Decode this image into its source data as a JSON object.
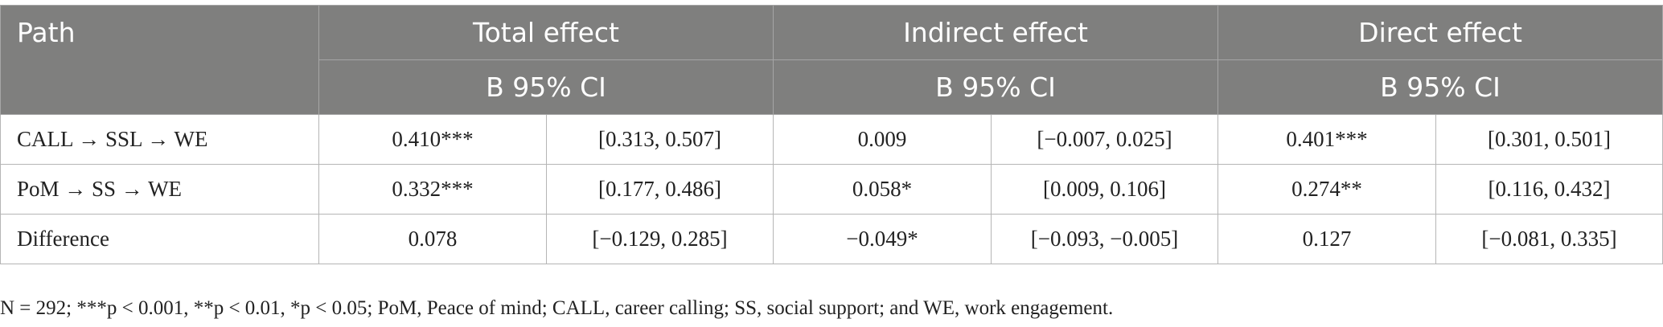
{
  "header": {
    "path": "Path",
    "groups": [
      "Total effect",
      "Indirect effect",
      "Direct effect"
    ],
    "sub": [
      "B 95% CI",
      "B 95% CI",
      "B 95% CI"
    ]
  },
  "table": {
    "rows": [
      [
        "CALL → SSL → WE",
        "0.410***",
        "[0.313, 0.507]",
        "0.009",
        "[−0.007, 0.025]",
        "0.401***",
        "[0.301, 0.501]"
      ],
      [
        "PoM → SS → WE",
        "0.332***",
        "[0.177, 0.486]",
        "0.058*",
        "[0.009, 0.106]",
        "0.274**",
        "[0.116, 0.432]"
      ],
      [
        "Difference",
        "0.078",
        "[−0.129, 0.285]",
        "−0.049*",
        "[−0.093, −0.005]",
        "0.127",
        "[−0.081, 0.335]"
      ]
    ]
  },
  "footnote": "N = 292; ***p < 0.001, **p < 0.01, *p < 0.05; PoM, Peace of mind; CALL, career calling; SS, social support; and WE, work engagement."
}
